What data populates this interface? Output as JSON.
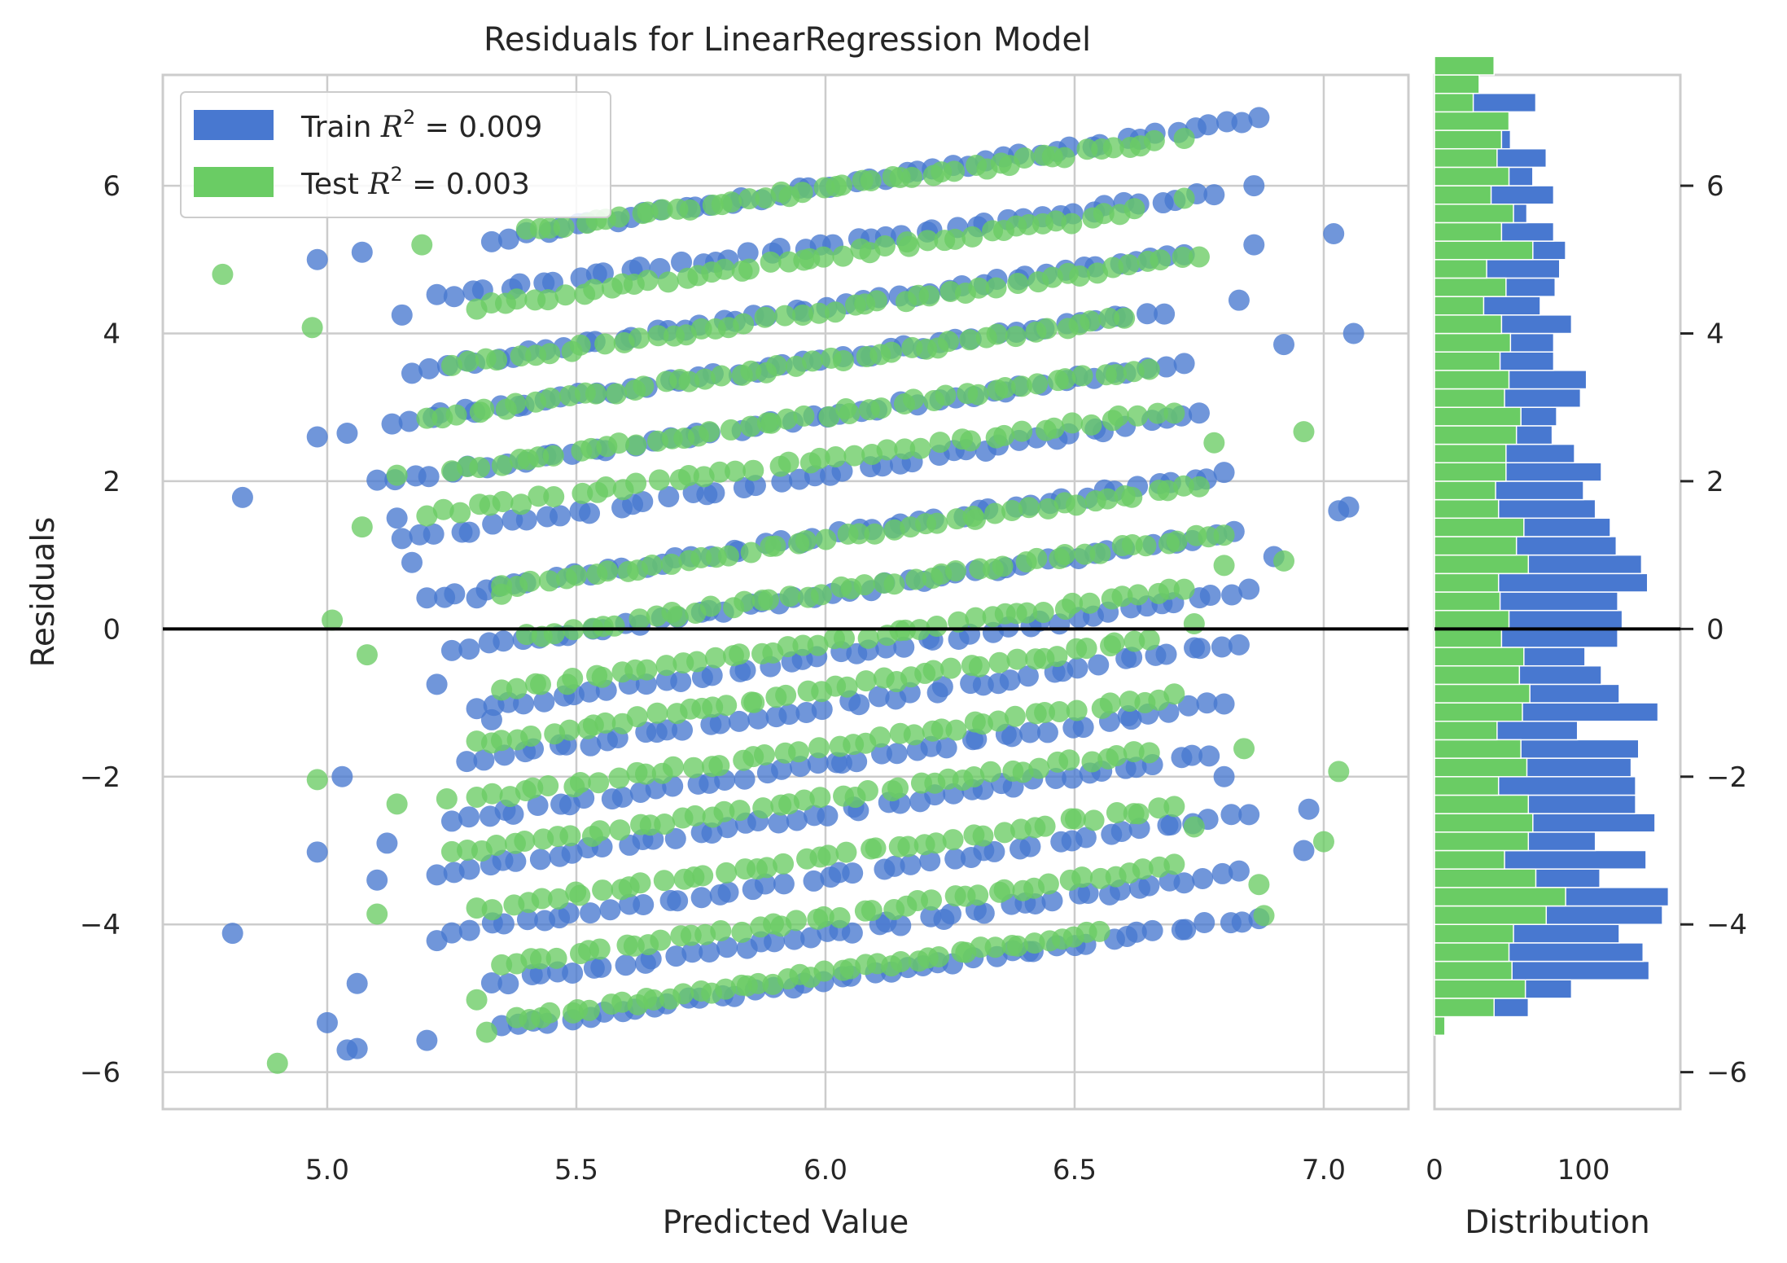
{
  "chart_data": {
    "type": "scatter",
    "title": "Residuals for LinearRegression Model",
    "xlabel": "Predicted Value",
    "ylabel": "Residuals",
    "xlim": [
      4.67,
      7.17
    ],
    "ylim": [
      -6.5,
      7.5
    ],
    "xticks": [
      5.0,
      5.5,
      6.0,
      6.5,
      7.0
    ],
    "xtick_labels": [
      "5.0",
      "5.5",
      "6.0",
      "6.5",
      "7.0"
    ],
    "yticks": [
      6,
      4,
      2,
      0,
      -2,
      -4,
      -6
    ],
    "ytick_labels": [
      "6",
      "4",
      "2",
      "0",
      "−2",
      "−4",
      "−6"
    ],
    "grid": true,
    "zero_line": 0,
    "legend": {
      "position": "top-left",
      "entries": [
        {
          "label": "Train R² = 0.009",
          "prefix": "Train ",
          "suffix": " = 0.009",
          "color": "#4878d0"
        },
        {
          "label": "Test R² = 0.003",
          "prefix": "Test ",
          "suffix": " = 0.003",
          "color": "#6acc64"
        }
      ]
    },
    "series": [
      {
        "name": "Train",
        "color": "#4878d0",
        "bands": [
          {
            "x0": 5.33,
            "x1": 6.87,
            "y0": 5.28,
            "y1": 6.9
          },
          {
            "x0": 5.22,
            "x1": 6.78,
            "y0": 4.5,
            "y1": 5.9
          },
          {
            "x0": 5.17,
            "x1": 6.72,
            "y0": 3.5,
            "y1": 5.1
          },
          {
            "x0": 5.13,
            "x1": 6.68,
            "y0": 2.8,
            "y1": 4.3
          },
          {
            "x0": 5.1,
            "x1": 6.72,
            "y0": 2.0,
            "y1": 3.6
          },
          {
            "x0": 5.15,
            "x1": 6.75,
            "y0": 1.2,
            "y1": 2.9
          },
          {
            "x0": 5.2,
            "x1": 6.8,
            "y0": 0.4,
            "y1": 2.1
          },
          {
            "x0": 5.25,
            "x1": 6.82,
            "y0": -0.3,
            "y1": 1.3
          },
          {
            "x0": 5.3,
            "x1": 6.85,
            "y0": -1.1,
            "y1": 0.5
          },
          {
            "x0": 5.28,
            "x1": 6.83,
            "y0": -1.8,
            "y1": -0.2
          },
          {
            "x0": 5.25,
            "x1": 6.8,
            "y0": -2.6,
            "y1": -1.0
          },
          {
            "x0": 5.22,
            "x1": 6.77,
            "y0": -3.3,
            "y1": -1.7
          },
          {
            "x0": 5.25,
            "x1": 6.85,
            "y0": -4.1,
            "y1": -2.5
          },
          {
            "x0": 5.33,
            "x1": 6.83,
            "y0": -4.8,
            "y1": -3.3
          },
          {
            "x0": 5.35,
            "x1": 6.87,
            "y0": -5.4,
            "y1": -3.9
          }
        ],
        "outliers": [
          [
            4.83,
            1.78
          ],
          [
            4.81,
            -4.12
          ],
          [
            4.98,
            5.0
          ],
          [
            4.98,
            2.6
          ],
          [
            5.04,
            2.65
          ],
          [
            4.98,
            -3.02
          ],
          [
            5.03,
            -2.0
          ],
          [
            5.0,
            -5.33
          ],
          [
            5.04,
            -5.7
          ],
          [
            5.06,
            -5.68
          ],
          [
            5.06,
            -4.8
          ],
          [
            5.1,
            -3.4
          ],
          [
            5.12,
            -2.9
          ],
          [
            5.17,
            0.9
          ],
          [
            5.2,
            -5.57
          ],
          [
            5.22,
            -4.22
          ],
          [
            5.07,
            5.1
          ],
          [
            5.15,
            4.25
          ],
          [
            5.14,
            1.5
          ],
          [
            5.3,
            0.42
          ],
          [
            5.33,
            -1.23
          ],
          [
            5.22,
            -0.75
          ],
          [
            6.92,
            3.85
          ],
          [
            6.96,
            -3.0
          ],
          [
            6.9,
            0.98
          ],
          [
            6.83,
            4.45
          ],
          [
            7.03,
            1.6
          ],
          [
            7.05,
            1.65
          ],
          [
            7.06,
            4.0
          ],
          [
            7.02,
            5.35
          ],
          [
            6.86,
            6.0
          ],
          [
            6.86,
            5.2
          ],
          [
            6.97,
            -2.44
          ],
          [
            6.8,
            -2.0
          ]
        ]
      },
      {
        "name": "Test",
        "color": "#6acc64",
        "bands": [
          {
            "x0": 5.4,
            "x1": 6.66,
            "y0": 5.4,
            "y1": 6.58
          },
          {
            "x0": 5.3,
            "x1": 6.62,
            "y0": 4.35,
            "y1": 5.65
          },
          {
            "x0": 5.25,
            "x1": 6.75,
            "y0": 3.55,
            "y1": 5.05
          },
          {
            "x0": 5.2,
            "x1": 6.6,
            "y0": 2.85,
            "y1": 4.2
          },
          {
            "x0": 5.25,
            "x1": 6.65,
            "y0": 2.15,
            "y1": 3.55
          },
          {
            "x0": 5.2,
            "x1": 6.7,
            "y0": 1.55,
            "y1": 2.95
          },
          {
            "x0": 5.35,
            "x1": 6.75,
            "y0": 0.55,
            "y1": 1.95
          },
          {
            "x0": 5.4,
            "x1": 6.8,
            "y0": -0.1,
            "y1": 1.3
          },
          {
            "x0": 5.35,
            "x1": 6.72,
            "y0": -0.85,
            "y1": 0.55
          },
          {
            "x0": 5.3,
            "x1": 6.65,
            "y0": -1.55,
            "y1": -0.15
          },
          {
            "x0": 5.3,
            "x1": 6.7,
            "y0": -2.3,
            "y1": -0.9
          },
          {
            "x0": 5.25,
            "x1": 6.65,
            "y0": -3.05,
            "y1": -1.65
          },
          {
            "x0": 5.3,
            "x1": 6.7,
            "y0": -3.8,
            "y1": -2.4
          },
          {
            "x0": 5.35,
            "x1": 6.7,
            "y0": -4.55,
            "y1": -3.2
          },
          {
            "x0": 5.38,
            "x1": 6.55,
            "y0": -5.3,
            "y1": -4.1
          }
        ],
        "outliers": [
          [
            4.79,
            4.8
          ],
          [
            4.97,
            4.08
          ],
          [
            4.98,
            -2.04
          ],
          [
            5.01,
            0.12
          ],
          [
            5.07,
            1.38
          ],
          [
            5.08,
            -0.35
          ],
          [
            5.1,
            -3.86
          ],
          [
            4.9,
            -5.88
          ],
          [
            5.14,
            -2.37
          ],
          [
            5.14,
            2.08
          ],
          [
            5.19,
            5.2
          ],
          [
            5.24,
            -2.3
          ],
          [
            5.3,
            -5.02
          ],
          [
            5.32,
            -5.46
          ],
          [
            5.35,
            0.47
          ],
          [
            6.78,
            2.52
          ],
          [
            6.96,
            2.67
          ],
          [
            7.03,
            -1.93
          ],
          [
            7.0,
            -2.88
          ],
          [
            6.88,
            -3.88
          ],
          [
            6.87,
            -3.46
          ],
          [
            6.92,
            0.92
          ],
          [
            6.8,
            0.86
          ],
          [
            6.84,
            -1.62
          ],
          [
            6.74,
            -2.68
          ],
          [
            6.74,
            0.07
          ],
          [
            6.72,
            5.83
          ],
          [
            6.72,
            6.64
          ]
        ]
      }
    ],
    "distribution": {
      "xlabel": "Distribution",
      "xlim": [
        0,
        165
      ],
      "xticks": [
        0,
        100
      ],
      "xtick_labels": [
        "0",
        "100"
      ],
      "bin_start": -5.5,
      "bin_width": 0.25,
      "train_counts": [
        2,
        63,
        92,
        144,
        140,
        124,
        153,
        157,
        111,
        142,
        108,
        148,
        135,
        135,
        132,
        137,
        96,
        150,
        124,
        112,
        101,
        123,
        126,
        123,
        143,
        139,
        122,
        118,
        108,
        100,
        112,
        94,
        79,
        82,
        98,
        102,
        80,
        80,
        92,
        71,
        81,
        84,
        88,
        80,
        62,
        80,
        66,
        75,
        51,
        26,
        68,
        10,
        4
      ],
      "test_counts": [
        7,
        40,
        61,
        52,
        50,
        53,
        75,
        88,
        68,
        47,
        63,
        66,
        63,
        43,
        62,
        58,
        42,
        59,
        64,
        57,
        60,
        45,
        50,
        44,
        43,
        63,
        55,
        60,
        43,
        41,
        48,
        48,
        55,
        58,
        47,
        50,
        44,
        51,
        45,
        33,
        48,
        35,
        66,
        45,
        53,
        38,
        50,
        42,
        45,
        50,
        26,
        30,
        40
      ]
    }
  }
}
